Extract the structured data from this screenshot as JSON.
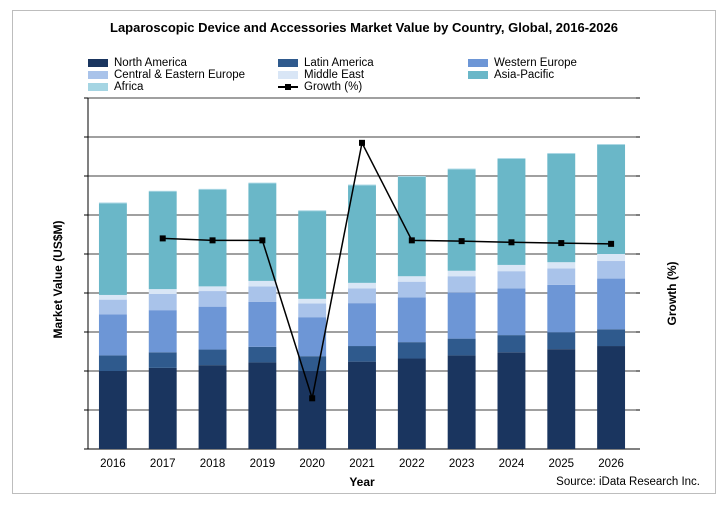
{
  "chart_data": {
    "type": "bar",
    "title": "Laparoscopic Device and Accessories Market Value by Country, Global, 2016-2026",
    "xlabel": "Year",
    "ylabel": "Market Value (US$M)",
    "y2label": "Growth (%)",
    "source": "Source: iData Research Inc.",
    "categories": [
      "2016",
      "2017",
      "2018",
      "2019",
      "2020",
      "2021",
      "2022",
      "2023",
      "2024",
      "2025",
      "2026"
    ],
    "ylim": [
      0,
      9
    ],
    "y2lim": [
      0,
      9
    ],
    "grid": true,
    "legend_position": "top",
    "series": [
      {
        "name": "North America",
        "color": "#1a355f",
        "values": [
          2.0,
          2.08,
          2.15,
          2.22,
          2.0,
          2.24,
          2.32,
          2.4,
          2.48,
          2.56,
          2.64
        ]
      },
      {
        "name": "Latin America",
        "color": "#2f5a8d",
        "values": [
          0.4,
          0.4,
          0.4,
          0.4,
          0.38,
          0.4,
          0.42,
          0.43,
          0.44,
          0.43,
          0.43
        ]
      },
      {
        "name": "Western Europe",
        "color": "#6d96d6",
        "values": [
          1.05,
          1.08,
          1.1,
          1.15,
          1.0,
          1.1,
          1.15,
          1.18,
          1.2,
          1.22,
          1.3
        ]
      },
      {
        "name": "Central & Eastern Europe",
        "color": "#a9c3ea",
        "values": [
          0.38,
          0.42,
          0.4,
          0.4,
          0.35,
          0.38,
          0.4,
          0.42,
          0.44,
          0.42,
          0.45
        ]
      },
      {
        "name": "Middle East",
        "color": "#d9e6f6",
        "values": [
          0.12,
          0.12,
          0.12,
          0.14,
          0.12,
          0.14,
          0.14,
          0.14,
          0.16,
          0.16,
          0.18
        ]
      },
      {
        "name": "Asia-Pacific",
        "color": "#6ab7c8",
        "values": [
          2.35,
          2.5,
          2.48,
          2.5,
          2.25,
          2.5,
          2.55,
          2.6,
          2.72,
          2.78,
          2.8
        ]
      },
      {
        "name": "Africa",
        "color": "#a5d5e3",
        "values": [
          0.02,
          0.02,
          0.02,
          0.02,
          0.02,
          0.02,
          0.02,
          0.02,
          0.02,
          0.02,
          0.02
        ]
      }
    ],
    "growth": {
      "name": "Growth (%)",
      "values": [
        null,
        5.4,
        5.35,
        5.35,
        1.3,
        7.85,
        5.35,
        5.33,
        5.3,
        5.28,
        5.26
      ]
    }
  }
}
